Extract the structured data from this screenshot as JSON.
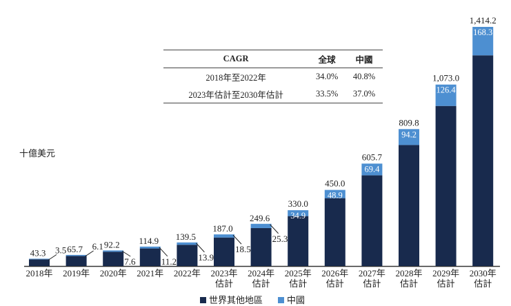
{
  "chart_data": {
    "type": "bar",
    "stacked": true,
    "unit_label": "十億美元",
    "categories": [
      [
        "2018年"
      ],
      [
        "2019年"
      ],
      [
        "2020年"
      ],
      [
        "2021年"
      ],
      [
        "2022年"
      ],
      [
        "2023年",
        "估計"
      ],
      [
        "2024年",
        "估計"
      ],
      [
        "2025年",
        "估計"
      ],
      [
        "2026年",
        "估計"
      ],
      [
        "2027年",
        "估計"
      ],
      [
        "2028年",
        "估計"
      ],
      [
        "2029年",
        "估計"
      ],
      [
        "2030年",
        "估計"
      ]
    ],
    "totals": [
      43.3,
      65.7,
      92.2,
      114.9,
      139.5,
      187.0,
      249.6,
      330.0,
      450.0,
      605.7,
      809.8,
      1073.0,
      1414.2
    ],
    "total_labels": [
      "43.3",
      "65.7",
      "92.2",
      "114.9",
      "139.5",
      "187.0",
      "249.6",
      "330.0",
      "450.0",
      "605.7",
      "809.8",
      "1,073.0",
      "1,414.2"
    ],
    "series": [
      {
        "name": "世界其他地區",
        "color": "#182a4d",
        "values": [
          39.8,
          59.6,
          84.6,
          103.7,
          125.6,
          168.5,
          224.3,
          295.1,
          401.1,
          536.3,
          715.6,
          946.6,
          1245.9
        ]
      },
      {
        "name": "中國",
        "color": "#4d8fd1",
        "values": [
          3.5,
          6.1,
          7.6,
          11.2,
          13.9,
          18.5,
          25.3,
          34.9,
          48.9,
          69.4,
          94.2,
          126.4,
          168.3
        ],
        "labels": [
          "3.5",
          "6.1",
          "7.6",
          "11.2",
          "13.9",
          "18.5",
          "25.3",
          "34.9",
          "48.9",
          "69.4",
          "94.2",
          "126.4",
          "168.3"
        ]
      }
    ],
    "ylim": [
      0,
      1414.2
    ],
    "legend_position": "bottom",
    "grid": false
  },
  "cagr_table": {
    "headers": [
      "CAGR",
      "全球",
      "中國"
    ],
    "rows": [
      [
        "2018年至2022年",
        "34.0%",
        "40.8%"
      ],
      [
        "2023年估計至2030年估計",
        "33.5%",
        "37.0%"
      ]
    ]
  }
}
